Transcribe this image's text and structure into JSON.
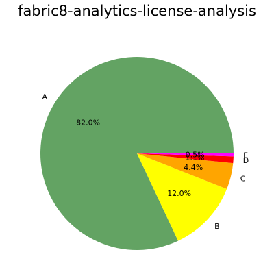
{
  "chart_data": {
    "type": "pie",
    "title": "fabric8-analytics-license-analysis",
    "slices": [
      {
        "label": "A",
        "value": 82.0,
        "pct_label": "82.0%",
        "color": "#63a363"
      },
      {
        "label": "B",
        "value": 12.0,
        "pct_label": "12.0%",
        "color": "#ffff00"
      },
      {
        "label": "C",
        "value": 4.4,
        "pct_label": "4.4%",
        "color": "#ffa500"
      },
      {
        "label": "D",
        "value": 1.1,
        "pct_label": "1.1%",
        "color": "#ff0000"
      },
      {
        "label": "E",
        "value": 0.5,
        "pct_label": "0.5%",
        "color": "#ff00ff"
      }
    ],
    "start_angle_deg": 0,
    "direction": "counterclockwise"
  }
}
